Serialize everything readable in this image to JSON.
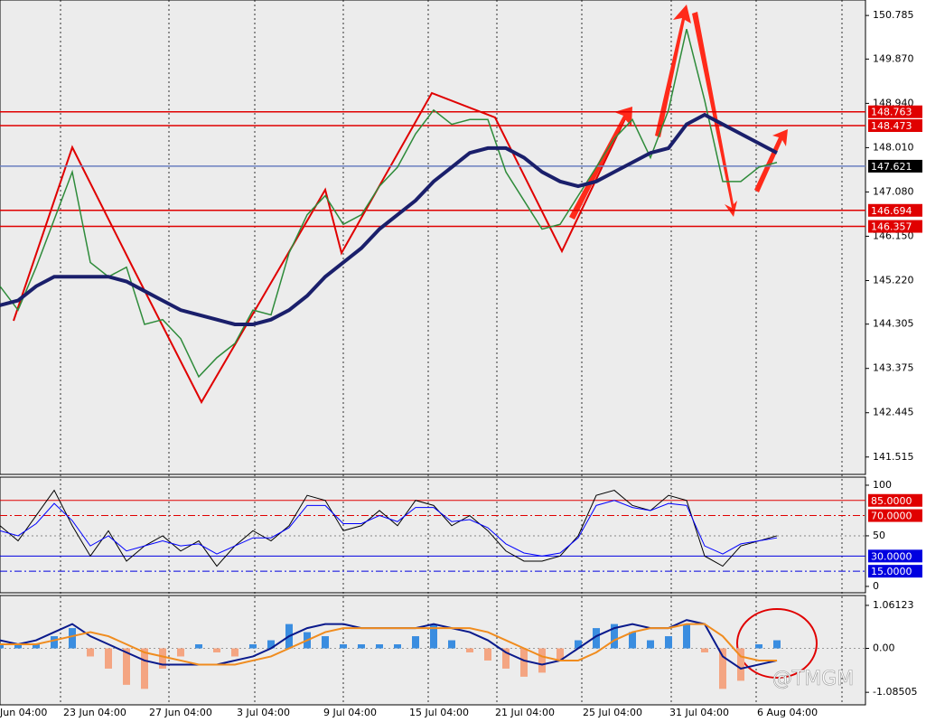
{
  "chart_data": [
    {
      "type": "line",
      "ylim": [
        141.15,
        151.11
      ],
      "yticks": [
        141.515,
        142.445,
        143.375,
        144.305,
        {
          "value": 145.22,
          "label": "145.220"
        },
        {
          "value": 146.15,
          "label": "146.150"
        },
        {
          "value": 147.08,
          "label": "147.080"
        },
        {
          "value": 148.01,
          "label": "148.010"
        },
        {
          "value": 148.94,
          "label": "148.940"
        },
        {
          "value": 149.87,
          "label": "149.870"
        },
        150.785
      ],
      "levels": [
        {
          "value": 148.763,
          "color": "#e00000"
        },
        {
          "value": 148.473,
          "color": "#e00000"
        },
        {
          "value": 147.621,
          "color": "#000000",
          "line_color": "#6a7fc0"
        },
        {
          "value": 146.694,
          "color": "#e00000"
        },
        {
          "value": 146.357,
          "color": "#e00000"
        }
      ],
      "x_labels": [
        "Jun 04:00",
        "23 Jun 04:00",
        "27 Jun 04:00",
        "3 Jul 04:00",
        "9 Jul 04:00",
        "15 Jul 04:00",
        "21 Jul 04:00",
        "25 Jul 04:00",
        "31 Jul 04:00",
        "6 Aug 04:00"
      ],
      "series": [
        {
          "color": "#2e8b3a",
          "width": 1.5,
          "values": [
            145.1,
            144.6,
            145.5,
            146.5,
            147.5,
            145.6,
            145.3,
            145.5,
            144.3,
            144.4,
            144.0,
            143.2,
            143.6,
            143.9,
            144.6,
            144.5,
            145.8,
            146.6,
            147.0,
            146.4,
            146.6,
            147.2,
            147.6,
            148.3,
            148.8,
            148.5,
            148.6,
            148.6,
            147.5,
            146.9,
            146.3,
            146.4,
            147.0,
            147.6,
            148.2,
            148.6,
            147.8,
            148.8,
            150.5,
            149.0,
            147.3,
            147.3,
            147.6,
            147.7
          ]
        },
        {
          "color": "#1a1f6b",
          "width": 4,
          "values": [
            144.7,
            144.8,
            145.1,
            145.3,
            145.3,
            145.3,
            145.3,
            145.2,
            145.0,
            144.8,
            144.6,
            144.5,
            144.4,
            144.3,
            144.3,
            144.4,
            144.6,
            144.9,
            145.3,
            145.6,
            145.9,
            146.3,
            146.6,
            146.9,
            147.3,
            147.6,
            147.9,
            148.0,
            148.0,
            147.8,
            147.5,
            147.3,
            147.2,
            147.3,
            147.5,
            147.7,
            147.9,
            148.0,
            148.5,
            148.7,
            148.5,
            148.3,
            148.1,
            147.9
          ]
        }
      ]
    },
    {
      "type": "line",
      "ylim": [
        -6.3,
        108
      ],
      "yticks": [
        0,
        50,
        100
      ],
      "levels": [
        {
          "value": 85,
          "label": "85.0000",
          "color": "#e00000"
        },
        {
          "value": 70,
          "label": "70.0000",
          "color": "#e00000"
        },
        {
          "value": 30,
          "label": "30.0000",
          "color": "#0000e0"
        },
        {
          "value": 15,
          "label": "15.0000",
          "color": "#0000e0"
        }
      ],
      "series": [
        {
          "color": "#000000",
          "width": 1,
          "values": [
            60,
            45,
            70,
            95,
            60,
            30,
            55,
            25,
            40,
            50,
            35,
            45,
            20,
            40,
            55,
            45,
            60,
            90,
            85,
            55,
            60,
            75,
            60,
            85,
            80,
            60,
            70,
            55,
            35,
            25,
            25,
            30,
            50,
            90,
            95,
            80,
            75,
            90,
            85,
            30,
            20,
            40,
            45,
            50
          ]
        },
        {
          "color": "#0000ff",
          "width": 1,
          "values": [
            55,
            50,
            62,
            82,
            65,
            40,
            50,
            35,
            40,
            45,
            40,
            42,
            32,
            40,
            48,
            48,
            58,
            80,
            80,
            62,
            62,
            70,
            64,
            78,
            78,
            64,
            66,
            58,
            42,
            33,
            30,
            33,
            48,
            80,
            85,
            78,
            75,
            82,
            80,
            40,
            32,
            42,
            45,
            48
          ]
        }
      ]
    },
    {
      "type": "line",
      "ylim": [
        -1.394,
        1.305
      ],
      "yticks": [
        -1.08505,
        {
          "value": 0,
          "label": "0.00"
        },
        1.06123
      ],
      "series": [
        {
          "color": "#3a8de0",
          "color_negative": "#f4a582",
          "style": "bars",
          "values": [
            0.1,
            0.1,
            0.1,
            0.3,
            0.5,
            -0.2,
            -0.5,
            -0.9,
            -1.0,
            -0.5,
            -0.2,
            0.1,
            -0.1,
            -0.2,
            0.1,
            0.2,
            0.6,
            0.4,
            0.3,
            0.1,
            0.1,
            0.1,
            0.1,
            0.3,
            0.6,
            0.2,
            -0.1,
            -0.3,
            -0.5,
            -0.7,
            -0.6,
            -0.3,
            0.2,
            0.5,
            0.6,
            0.4,
            0.2,
            0.3,
            0.6,
            -0.1,
            -1.0,
            -0.8,
            0.1,
            0.2
          ]
        },
        {
          "color": "#0a1a8c",
          "width": 2,
          "values": [
            0.2,
            0.1,
            0.2,
            0.4,
            0.6,
            0.3,
            0.1,
            -0.1,
            -0.3,
            -0.4,
            -0.4,
            -0.4,
            -0.4,
            -0.3,
            -0.2,
            0,
            0.3,
            0.5,
            0.6,
            0.6,
            0.5,
            0.5,
            0.5,
            0.5,
            0.6,
            0.5,
            0.4,
            0.2,
            -0.1,
            -0.3,
            -0.4,
            -0.3,
            0,
            0.3,
            0.5,
            0.6,
            0.5,
            0.5,
            0.7,
            0.6,
            -0.2,
            -0.5,
            -0.4,
            -0.3
          ]
        },
        {
          "color": "#f08c1e",
          "width": 2,
          "values": [
            0.1,
            0.1,
            0.1,
            0.2,
            0.3,
            0.4,
            0.3,
            0.1,
            -0.1,
            -0.2,
            -0.3,
            -0.4,
            -0.4,
            -0.4,
            -0.3,
            -0.2,
            0,
            0.2,
            0.4,
            0.5,
            0.5,
            0.5,
            0.5,
            0.5,
            0.5,
            0.5,
            0.5,
            0.4,
            0.2,
            0,
            -0.2,
            -0.3,
            -0.3,
            -0.1,
            0.2,
            0.4,
            0.5,
            0.5,
            0.6,
            0.6,
            0.3,
            -0.2,
            -0.3,
            -0.3
          ]
        }
      ],
      "watermark": "@TMGM"
    }
  ]
}
